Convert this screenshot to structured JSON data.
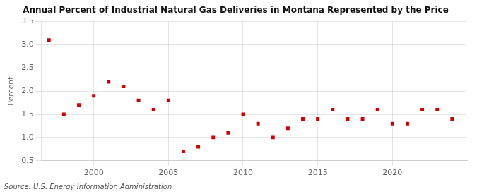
{
  "chart_data": {
    "type": "scatter",
    "title": "Annual Percent of Industrial Natural Gas Deliveries in Montana Represented by the Price",
    "ylabel": "Percent",
    "source": "Source: U.S. Energy Information Administration",
    "x": [
      1997,
      1998,
      1999,
      2000,
      2001,
      2002,
      2003,
      2004,
      2005,
      2006,
      2007,
      2008,
      2009,
      2010,
      2011,
      2012,
      2013,
      2014,
      2015,
      2016,
      2017,
      2018,
      2019,
      2020,
      2021,
      2022,
      2023,
      2024
    ],
    "values": [
      3.1,
      1.5,
      1.7,
      1.9,
      2.2,
      2.1,
      1.8,
      1.6,
      1.8,
      0.7,
      0.8,
      1.0,
      1.1,
      1.5,
      1.3,
      1.0,
      1.2,
      1.4,
      1.4,
      1.6,
      1.4,
      1.4,
      1.6,
      1.3,
      1.3,
      1.6,
      1.6,
      1.4
    ],
    "color": "#cc0000",
    "marker": "square",
    "xlim": [
      1996.5,
      2025
    ],
    "xticks": [
      2000,
      2005,
      2010,
      2015,
      2020
    ],
    "ylim": [
      0.5,
      3.5
    ],
    "yticks": [
      0.5,
      {
        "value": 1,
        "label": "1.0"
      },
      1.5,
      {
        "value": 2,
        "label": "2.0"
      },
      2.5,
      {
        "value": 3,
        "label": "3.0"
      },
      3.5
    ],
    "grid": true
  }
}
